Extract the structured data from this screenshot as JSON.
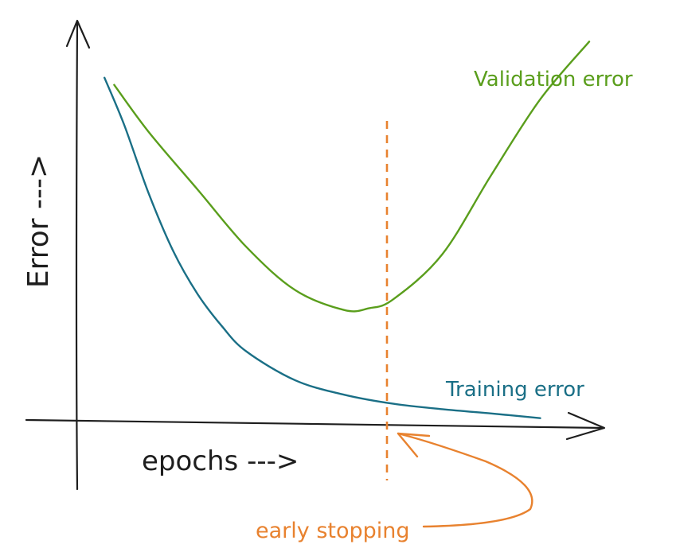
{
  "chart_data": {
    "type": "line",
    "title": "",
    "xlabel": "epochs --->",
    "ylabel": "Error --->",
    "grid": false,
    "xlim": [
      0,
      10
    ],
    "ylim": [
      0,
      10
    ],
    "series": [
      {
        "name": "Validation error",
        "color": "#5a9e1c",
        "x": [
          0.3,
          1.0,
          2.0,
          3.0,
          4.0,
          5.0,
          5.5,
          6.0,
          7.0,
          8.0,
          9.0,
          10.0
        ],
        "y": [
          9.3,
          8.0,
          6.4,
          4.8,
          3.6,
          3.05,
          3.1,
          3.35,
          4.6,
          6.8,
          8.9,
          10.5
        ]
      },
      {
        "name": "Training error",
        "color": "#1a6f86",
        "x": [
          0.1,
          0.5,
          1.0,
          1.5,
          2.0,
          2.5,
          3.0,
          4.0,
          5.0,
          6.0,
          7.0,
          8.0,
          9.0
        ],
        "y": [
          9.5,
          8.2,
          6.3,
          4.7,
          3.5,
          2.6,
          1.9,
          1.1,
          0.7,
          0.45,
          0.3,
          0.18,
          0.05
        ]
      }
    ],
    "annotations": [
      {
        "text": "early stopping",
        "color": "#e8822f",
        "x": 5.8,
        "marker": "dashed vertical line"
      }
    ]
  }
}
